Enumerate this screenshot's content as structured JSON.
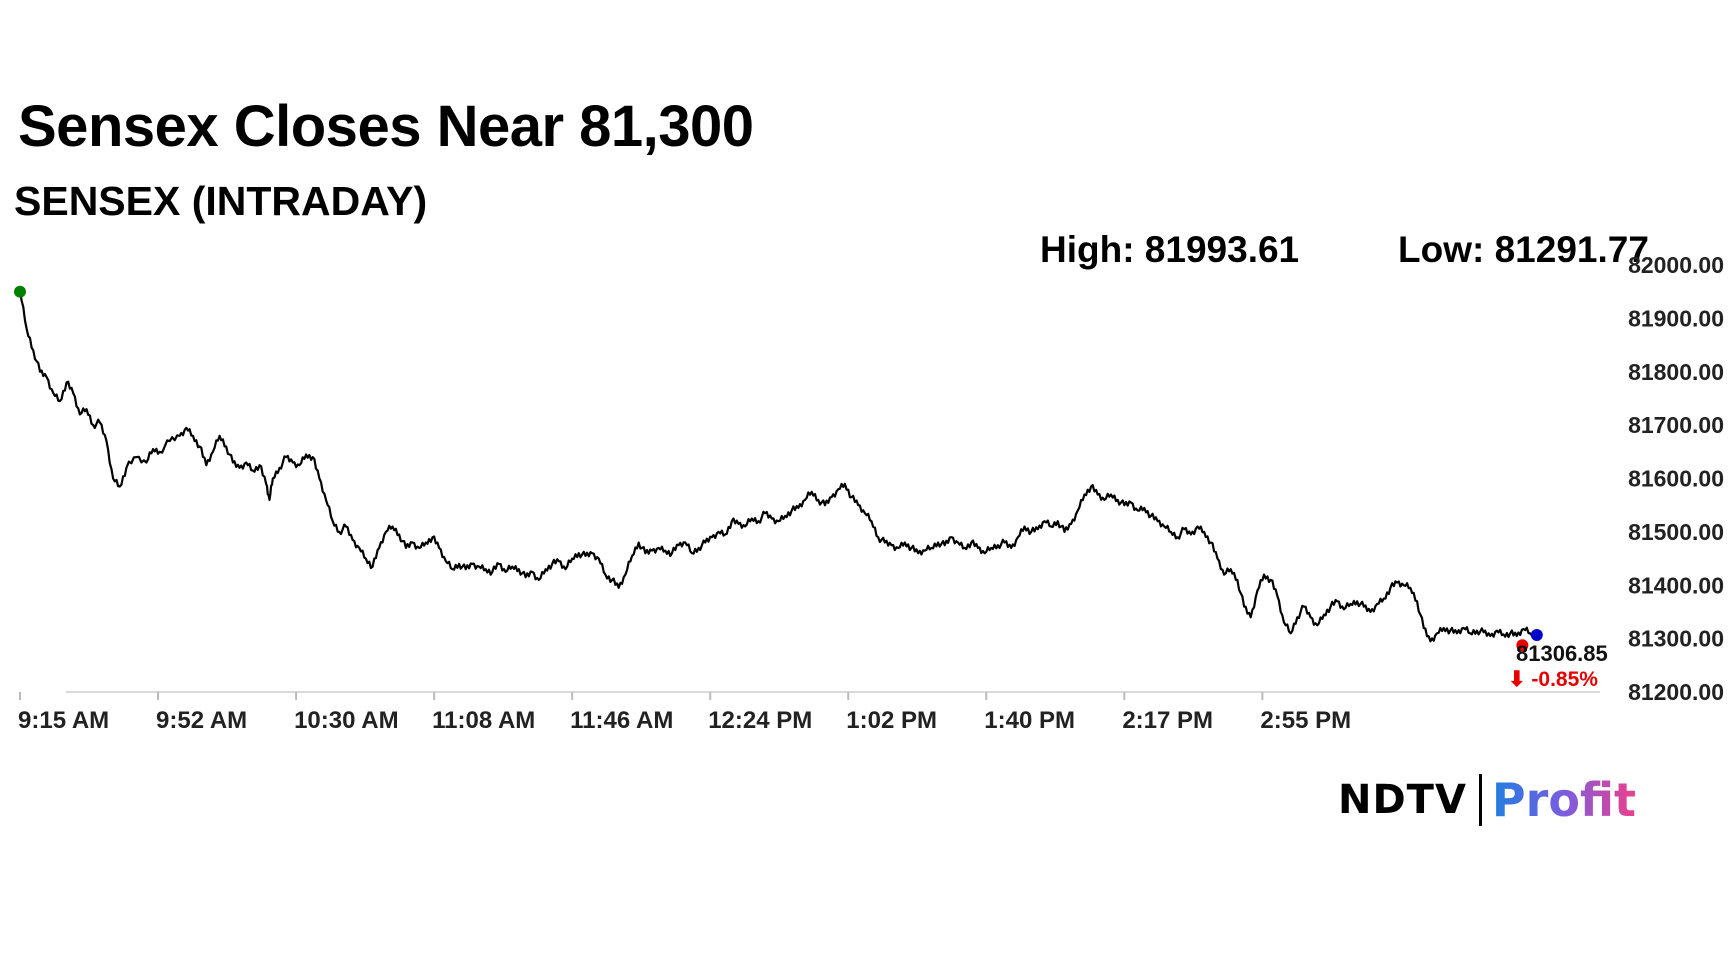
{
  "header": {
    "title": "Sensex Closes Near 81,300",
    "subtitle": "SENSEX (INTRADAY)"
  },
  "stats": {
    "high": "High: 81993.61",
    "low": "Low: 81291.77"
  },
  "logo": {
    "ndtv": "NDTV",
    "profit": "Profit"
  },
  "colors": {
    "line": "#000000",
    "open_marker": "#008000",
    "close_marker": "#0000cc",
    "low_marker": "#e60000",
    "change_text": "#e60000",
    "axis": "#d9d9d9"
  },
  "chart_data": {
    "type": "line",
    "title": "SENSEX (INTRADAY)",
    "x_ticks": [
      "9:15 AM",
      "9:52 AM",
      "10:30 AM",
      "11:08 AM",
      "11:46 AM",
      "12:24 PM",
      "1:02 PM",
      "1:40 PM",
      "2:17 PM",
      "2:55 PM"
    ],
    "y_ticks": [
      "82000.00",
      "81900.00",
      "81800.00",
      "81700.00",
      "81600.00",
      "81500.00",
      "81400.00",
      "81300.00",
      "81200.00"
    ],
    "ylim": [
      81200,
      82000
    ],
    "xlim_minutes_from_open": [
      0,
      375
    ],
    "series": [
      {
        "points": [
          [
            0,
            81950
          ],
          [
            2,
            81880
          ],
          [
            4,
            81840
          ],
          [
            6,
            81800
          ],
          [
            8,
            81790
          ],
          [
            10,
            81760
          ],
          [
            12,
            81745
          ],
          [
            14,
            81780
          ],
          [
            16,
            81760
          ],
          [
            18,
            81720
          ],
          [
            20,
            81730
          ],
          [
            22,
            81700
          ],
          [
            24,
            81705
          ],
          [
            26,
            81670
          ],
          [
            28,
            81600
          ],
          [
            30,
            81585
          ],
          [
            32,
            81620
          ],
          [
            35,
            81640
          ],
          [
            38,
            81630
          ],
          [
            40,
            81655
          ],
          [
            42,
            81650
          ],
          [
            45,
            81670
          ],
          [
            48,
            81680
          ],
          [
            50,
            81695
          ],
          [
            52,
            81680
          ],
          [
            54,
            81660
          ],
          [
            56,
            81625
          ],
          [
            58,
            81650
          ],
          [
            60,
            81680
          ],
          [
            62,
            81660
          ],
          [
            64,
            81630
          ],
          [
            66,
            81620
          ],
          [
            68,
            81630
          ],
          [
            70,
            81615
          ],
          [
            72,
            81625
          ],
          [
            74,
            81590
          ],
          [
            75,
            81560
          ],
          [
            76,
            81600
          ],
          [
            78,
            81620
          ],
          [
            80,
            81640
          ],
          [
            82,
            81630
          ],
          [
            84,
            81625
          ],
          [
            86,
            81645
          ],
          [
            88,
            81640
          ],
          [
            90,
            81600
          ],
          [
            92,
            81560
          ],
          [
            94,
            81520
          ],
          [
            96,
            81500
          ],
          [
            98,
            81510
          ],
          [
            100,
            81485
          ],
          [
            102,
            81470
          ],
          [
            104,
            81450
          ],
          [
            106,
            81435
          ],
          [
            108,
            81470
          ],
          [
            110,
            81500
          ],
          [
            112,
            81510
          ],
          [
            114,
            81495
          ],
          [
            116,
            81470
          ],
          [
            118,
            81480
          ],
          [
            120,
            81470
          ],
          [
            122,
            81480
          ],
          [
            124,
            81490
          ],
          [
            126,
            81470
          ],
          [
            128,
            81445
          ],
          [
            130,
            81430
          ],
          [
            132,
            81440
          ],
          [
            134,
            81430
          ],
          [
            136,
            81440
          ],
          [
            138,
            81435
          ],
          [
            140,
            81430
          ],
          [
            142,
            81425
          ],
          [
            144,
            81440
          ],
          [
            146,
            81425
          ],
          [
            148,
            81435
          ],
          [
            150,
            81430
          ],
          [
            152,
            81415
          ],
          [
            154,
            81425
          ],
          [
            156,
            81410
          ],
          [
            158,
            81430
          ],
          [
            160,
            81440
          ],
          [
            162,
            81445
          ],
          [
            164,
            81430
          ],
          [
            166,
            81450
          ],
          [
            168,
            81460
          ],
          [
            170,
            81455
          ],
          [
            172,
            81460
          ],
          [
            174,
            81450
          ],
          [
            176,
            81420
          ],
          [
            178,
            81410
          ],
          [
            180,
            81395
          ],
          [
            182,
            81420
          ],
          [
            184,
            81455
          ],
          [
            186,
            81480
          ],
          [
            188,
            81460
          ],
          [
            190,
            81465
          ],
          [
            192,
            81470
          ],
          [
            194,
            81465
          ],
          [
            196,
            81460
          ],
          [
            198,
            81475
          ],
          [
            200,
            81480
          ],
          [
            202,
            81460
          ],
          [
            204,
            81470
          ],
          [
            206,
            81480
          ],
          [
            208,
            81490
          ],
          [
            210,
            81500
          ],
          [
            212,
            81495
          ],
          [
            214,
            81520
          ],
          [
            216,
            81515
          ],
          [
            218,
            81510
          ],
          [
            220,
            81525
          ],
          [
            222,
            81520
          ],
          [
            224,
            81535
          ],
          [
            226,
            81525
          ],
          [
            228,
            81520
          ],
          [
            230,
            81530
          ],
          [
            232,
            81540
          ],
          [
            234,
            81545
          ],
          [
            236,
            81560
          ],
          [
            238,
            81575
          ],
          [
            240,
            81560
          ],
          [
            242,
            81550
          ],
          [
            244,
            81565
          ],
          [
            246,
            81580
          ],
          [
            248,
            81590
          ],
          [
            250,
            81565
          ],
          [
            252,
            81550
          ],
          [
            254,
            81535
          ],
          [
            256,
            81520
          ],
          [
            258,
            81490
          ],
          [
            260,
            81480
          ],
          [
            262,
            81475
          ],
          [
            264,
            81470
          ],
          [
            266,
            81480
          ],
          [
            268,
            81470
          ],
          [
            270,
            81460
          ],
          [
            272,
            81465
          ],
          [
            274,
            81470
          ],
          [
            276,
            81480
          ],
          [
            278,
            81475
          ],
          [
            280,
            81490
          ],
          [
            282,
            81480
          ],
          [
            284,
            81470
          ],
          [
            286,
            81480
          ],
          [
            288,
            81470
          ],
          [
            290,
            81460
          ],
          [
            292,
            81470
          ],
          [
            294,
            81475
          ],
          [
            296,
            81480
          ],
          [
            298,
            81470
          ],
          [
            300,
            81490
          ],
          [
            302,
            81510
          ],
          [
            304,
            81500
          ],
          [
            306,
            81505
          ],
          [
            308,
            81520
          ],
          [
            310,
            81510
          ],
          [
            312,
            81520
          ],
          [
            314,
            81500
          ],
          [
            316,
            81515
          ],
          [
            318,
            81540
          ],
          [
            320,
            81570
          ],
          [
            322,
            81585
          ],
          [
            324,
            81570
          ],
          [
            326,
            81560
          ],
          [
            328,
            81570
          ],
          [
            330,
            81560
          ],
          [
            332,
            81550
          ],
          [
            334,
            81555
          ],
          [
            336,
            81540
          ],
          [
            338,
            81545
          ],
          [
            340,
            81530
          ],
          [
            342,
            81520
          ],
          [
            344,
            81510
          ],
          [
            346,
            81500
          ],
          [
            348,
            81490
          ],
          [
            350,
            81505
          ],
          [
            352,
            81495
          ],
          [
            354,
            81510
          ],
          [
            356,
            81500
          ],
          [
            358,
            81480
          ],
          [
            360,
            81450
          ],
          [
            362,
            81420
          ],
          [
            364,
            81430
          ],
          [
            366,
            81410
          ],
          [
            368,
            81360
          ],
          [
            370,
            81340
          ],
          [
            372,
            81390
          ],
          [
            374,
            81420
          ],
          [
            376,
            81410
          ],
          [
            378,
            81380
          ],
          [
            380,
            81330
          ],
          [
            382,
            81310
          ],
          [
            384,
            81340
          ],
          [
            386,
            81360
          ],
          [
            388,
            81340
          ],
          [
            390,
            81325
          ],
          [
            392,
            81345
          ],
          [
            394,
            81360
          ],
          [
            396,
            81370
          ],
          [
            398,
            81355
          ],
          [
            400,
            81365
          ],
          [
            402,
            81370
          ],
          [
            404,
            81360
          ],
          [
            406,
            81350
          ],
          [
            408,
            81365
          ],
          [
            410,
            81375
          ],
          [
            412,
            81395
          ],
          [
            414,
            81405
          ],
          [
            416,
            81400
          ],
          [
            418,
            81395
          ],
          [
            420,
            81370
          ],
          [
            422,
            81320
          ],
          [
            424,
            81295
          ],
          [
            426,
            81310
          ],
          [
            428,
            81320
          ],
          [
            430,
            81315
          ],
          [
            432,
            81310
          ],
          [
            434,
            81320
          ],
          [
            436,
            81310
          ],
          [
            438,
            81315
          ],
          [
            440,
            81312
          ],
          [
            442,
            81305
          ],
          [
            444,
            81315
          ],
          [
            446,
            81308
          ],
          [
            448,
            81310
          ],
          [
            450,
            81305
          ],
          [
            452,
            81318
          ],
          [
            454,
            81310
          ],
          [
            456,
            81306.85
          ]
        ]
      }
    ],
    "last_value": "81306.85",
    "change": "⬇ -0.85%",
    "grid": false
  }
}
